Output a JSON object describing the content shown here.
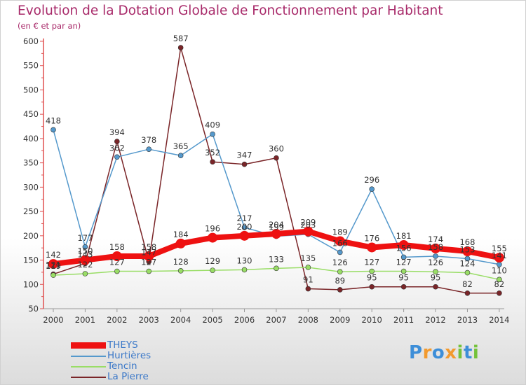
{
  "chart_data": {
    "type": "line",
    "title": "Evolution de la Dotation Globale de Fonctionnement par Habitant",
    "subtitle": "(en € et par an)",
    "xlabel": "",
    "ylabel": "",
    "ylim": [
      50,
      600
    ],
    "yticks": [
      50,
      100,
      150,
      200,
      250,
      300,
      350,
      400,
      450,
      500,
      550,
      600
    ],
    "categories": [
      "2000",
      "2001",
      "2002",
      "2003",
      "2004",
      "2005",
      "2006",
      "2007",
      "2008",
      "2009",
      "2010",
      "2011",
      "2012",
      "2013",
      "2014"
    ],
    "legend_position": "bottom-left",
    "series": [
      {
        "name": "La Pierre",
        "color": "#7a2528",
        "values": [
          121,
          143,
          394,
          147,
          587,
          352,
          347,
          360,
          91,
          89,
          95,
          95,
          95,
          82,
          82
        ]
      },
      {
        "name": "Tencin",
        "color": "#99dd66",
        "values": [
          119,
          122,
          127,
          127,
          128,
          129,
          130,
          133,
          135,
          126,
          127,
          127,
          126,
          124,
          110
        ]
      },
      {
        "name": "Hurtières",
        "color": "#5599cc",
        "values": [
          418,
          177,
          362,
          378,
          365,
          409,
          217,
          199,
          203,
          166,
          296,
          156,
          158,
          153,
          141
        ]
      },
      {
        "name": "THEYS",
        "color": "#ee1111",
        "values": [
          142,
          150,
          158,
          158,
          184,
          196,
          200,
          204,
          209,
          189,
          176,
          181,
          174,
          168,
          155
        ]
      }
    ],
    "data_labels": {
      "La Pierre": [
        "121",
        "143",
        "394",
        "147",
        "587",
        "352",
        "347",
        "360",
        "91",
        "89",
        "95",
        "95",
        "95",
        "82",
        "82"
      ],
      "Tencin": [
        "119",
        "122",
        "127",
        "127",
        "128",
        "129",
        "130",
        "133",
        "135",
        "126",
        "127",
        "127",
        "126",
        "124",
        "110"
      ],
      "Hurtières": [
        "418",
        "177",
        "362",
        "378",
        "365",
        "409",
        "217",
        "199",
        "203",
        "166",
        "296",
        "156",
        "158",
        "153",
        "141"
      ],
      "THEYS": [
        "142",
        "150",
        "158",
        "158",
        "184",
        "196",
        "200",
        "204",
        "209",
        "189",
        "176",
        "181",
        "174",
        "168",
        "155"
      ]
    }
  },
  "legend": {
    "items": [
      {
        "label": "THEYS",
        "color": "#ee1111"
      },
      {
        "label": "Hurtières",
        "color": "#5599cc"
      },
      {
        "label": "Tencin",
        "color": "#99dd66"
      },
      {
        "label": "La Pierre",
        "color": "#7a2528"
      }
    ]
  },
  "logo": {
    "text": "Proxiti"
  }
}
